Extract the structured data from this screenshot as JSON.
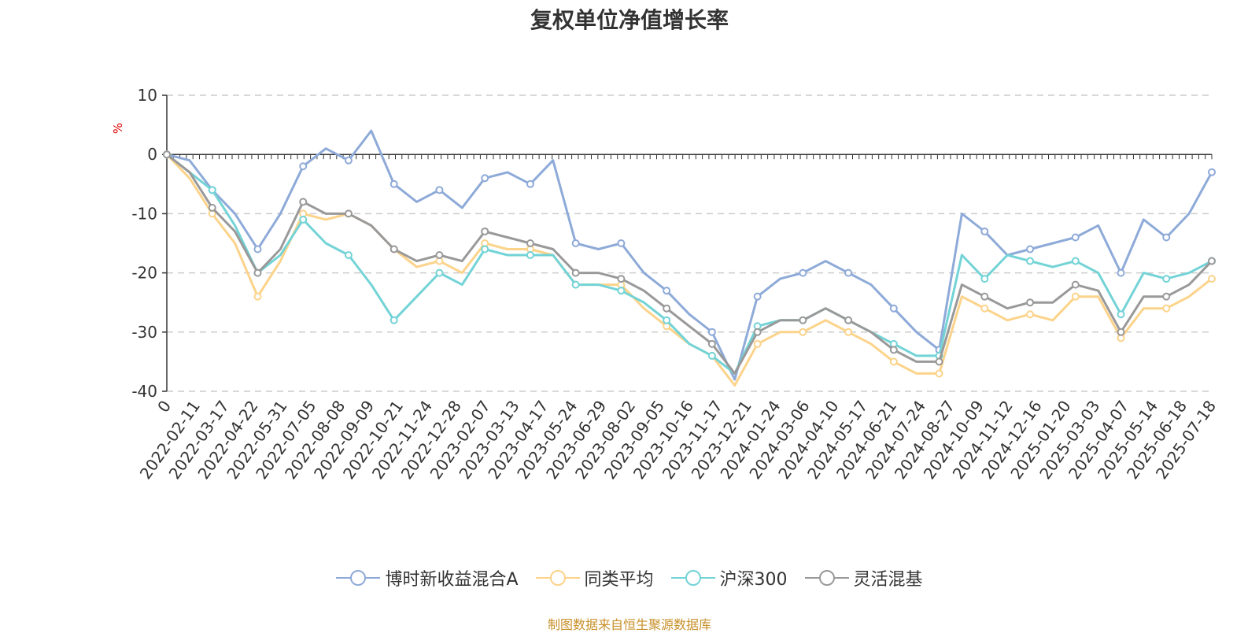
{
  "chart_data": {
    "type": "line",
    "title": "复权单位净值增长率",
    "ylabel": "%",
    "ylim": [
      -40,
      10
    ],
    "yticks": [
      10,
      0,
      -10,
      -20,
      -30,
      -40
    ],
    "grid": true,
    "legend_position": "bottom",
    "x_tick_labels": [
      "0",
      "2022-02-11",
      "2022-03-17",
      "2022-04-22",
      "2022-05-31",
      "2022-07-05",
      "2022-08-08",
      "2022-09-09",
      "2022-10-21",
      "2022-11-24",
      "2022-12-28",
      "2023-02-07",
      "2023-03-13",
      "2023-04-17",
      "2023-05-24",
      "2023-06-29",
      "2023-08-02",
      "2023-09-05",
      "2023-10-16",
      "2023-11-17",
      "2023-12-21",
      "2024-01-24",
      "2024-03-06",
      "2024-04-10",
      "2024-05-17",
      "2024-06-21",
      "2024-07-24",
      "2024-08-27",
      "2024-10-09",
      "2024-11-12",
      "2024-12-16",
      "2025-01-20",
      "2025-03-03",
      "2025-04-07",
      "2025-05-14",
      "2025-06-18",
      "2025-07-18"
    ],
    "series": [
      {
        "name": "博时新收益混合A",
        "color": "#8eaad8",
        "values": [
          0,
          -1,
          -6,
          -10,
          -16,
          -10,
          -2,
          1,
          -1,
          4,
          -5,
          -8,
          -6,
          -9,
          -4,
          -3,
          -5,
          -1,
          -15,
          -16,
          -15,
          -20,
          -23,
          -27,
          -30,
          -38,
          -24,
          -21,
          -20,
          -18,
          -20,
          -22,
          -26,
          -30,
          -33,
          -10,
          -13,
          -17,
          -16,
          -15,
          -14,
          -12,
          -20,
          -11,
          -14,
          -10,
          -3
        ]
      },
      {
        "name": "同类平均",
        "color": "#fcd38a",
        "values": [
          0,
          -4,
          -10,
          -15,
          -24,
          -18,
          -10,
          -11,
          -10,
          -12,
          -16,
          -19,
          -18,
          -20,
          -15,
          -16,
          -16,
          -17,
          -22,
          -22,
          -22,
          -26,
          -29,
          -32,
          -34,
          -39,
          -32,
          -30,
          -30,
          -28,
          -30,
          -32,
          -35,
          -37,
          -37,
          -24,
          -26,
          -28,
          -27,
          -28,
          -24,
          -24,
          -31,
          -26,
          -26,
          -24,
          -21
        ]
      },
      {
        "name": "沪深300",
        "color": "#73d3d6",
        "values": [
          0,
          -3,
          -6,
          -12,
          -20,
          -17,
          -11,
          -15,
          -17,
          -22,
          -28,
          -24,
          -20,
          -22,
          -16,
          -17,
          -17,
          -17,
          -22,
          -22,
          -23,
          -25,
          -28,
          -32,
          -34,
          -37,
          -29,
          -28,
          -28,
          -26,
          -28,
          -30,
          -32,
          -34,
          -34,
          -17,
          -21,
          -17,
          -18,
          -19,
          -18,
          -20,
          -27,
          -20,
          -21,
          -20,
          -18
        ]
      },
      {
        "name": "灵活混基",
        "color": "#999999",
        "values": [
          0,
          -3,
          -9,
          -13,
          -20,
          -16,
          -8,
          -10,
          -10,
          -12,
          -16,
          -18,
          -17,
          -18,
          -13,
          -14,
          -15,
          -16,
          -20,
          -20,
          -21,
          -23,
          -26,
          -29,
          -32,
          -37,
          -30,
          -28,
          -28,
          -26,
          -28,
          -30,
          -33,
          -35,
          -35,
          -22,
          -24,
          -26,
          -25,
          -25,
          -22,
          -23,
          -30,
          -24,
          -24,
          -22,
          -18
        ]
      }
    ]
  },
  "source_note": "制图数据来自恒生聚源数据库"
}
